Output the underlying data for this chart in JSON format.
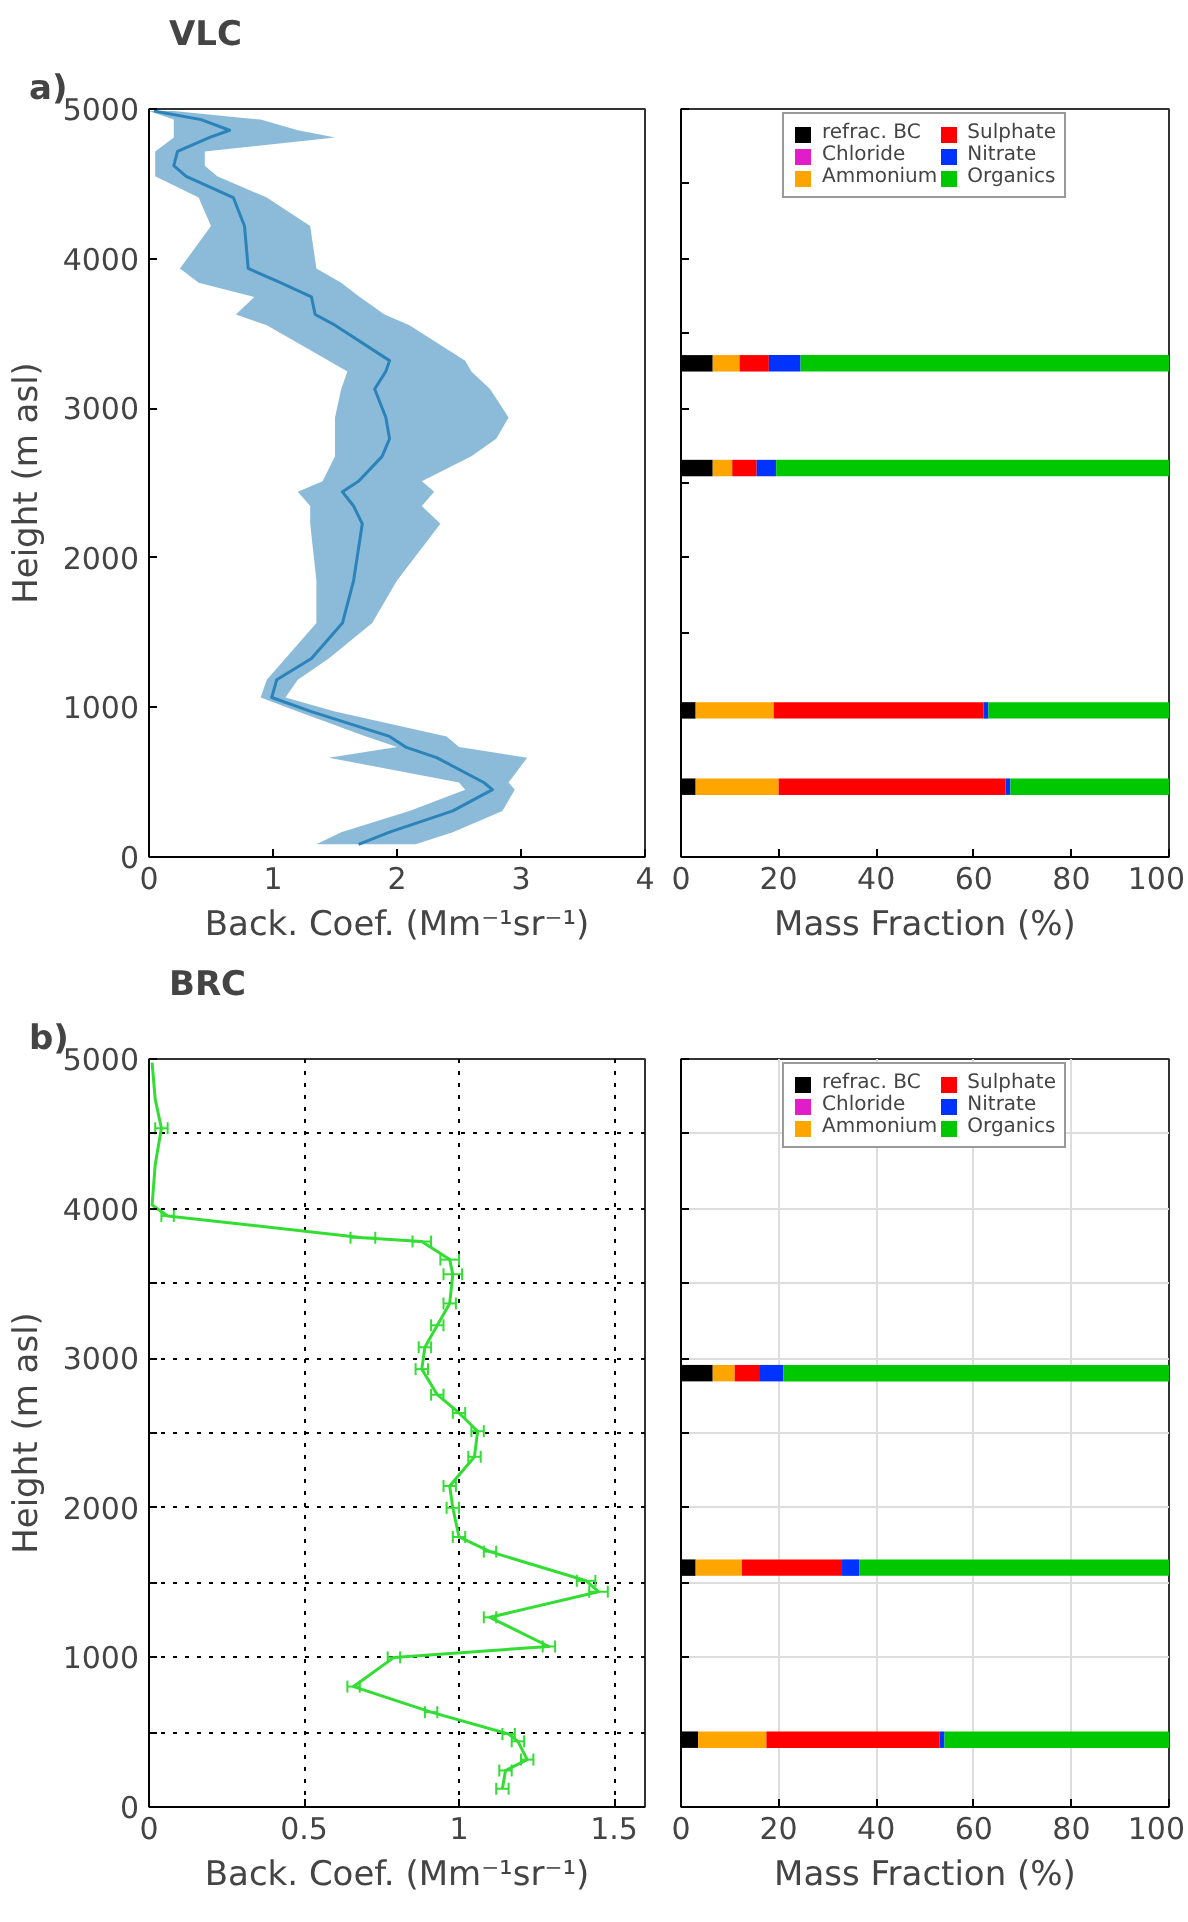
{
  "chart_data": [
    {
      "type": "line",
      "orientation": "horizontal",
      "title": "VLC",
      "annotations": [
        "a)"
      ],
      "xlabel": "Back. Coef. (Mm⁻¹sr⁻¹)",
      "ylabel": "Height (m asl)",
      "xlim": [
        0,
        4
      ],
      "xticks": [
        0,
        1,
        2,
        3,
        4
      ],
      "ylim": [
        0,
        5000
      ],
      "yticks": [
        0,
        1000,
        2000,
        3000,
        4000,
        5000
      ],
      "x": [
        85,
        166,
        308,
        450,
        498,
        664,
        735,
        806,
        972,
        1066,
        1185,
        1327,
        1564,
        1848,
        2227,
        2346,
        2441,
        2512,
        2678,
        2796,
        2938,
        3128,
        3246,
        3318,
        3555,
        3626,
        3744,
        3839,
        3934,
        4218,
        4408,
        4550,
        4621,
        4716,
        4810,
        4858,
        4929,
        4986
      ],
      "series": [
        {
          "color": "#2b83ba",
          "values": [
            1.69,
            1.94,
            2.45,
            2.77,
            2.7,
            2.32,
            2.07,
            1.94,
            1.31,
            0.99,
            1.03,
            1.31,
            1.56,
            1.65,
            1.72,
            1.65,
            1.56,
            1.69,
            1.88,
            1.94,
            1.91,
            1.82,
            1.91,
            1.94,
            1.5,
            1.34,
            1.31,
            1.06,
            0.8,
            0.77,
            0.68,
            0.3,
            0.2,
            0.23,
            0.49,
            0.65,
            0.42,
            0.04
          ],
          "lower": [
            1.35,
            1.55,
            2.1,
            2.55,
            2.5,
            1.45,
            2.0,
            1.75,
            1.2,
            0.9,
            0.95,
            1.1,
            1.35,
            1.35,
            1.3,
            1.3,
            1.2,
            1.4,
            1.5,
            1.5,
            1.5,
            1.55,
            1.6,
            1.45,
            0.95,
            0.7,
            0.85,
            0.4,
            0.25,
            0.5,
            0.4,
            0.05,
            0.05,
            0.05,
            0.2,
            0.2,
            0.2,
            0.0
          ],
          "upper": [
            2.15,
            2.45,
            2.85,
            2.95,
            2.9,
            3.05,
            2.5,
            2.4,
            1.5,
            1.1,
            1.2,
            1.45,
            1.8,
            2.0,
            2.35,
            2.2,
            2.3,
            2.2,
            2.6,
            2.8,
            2.9,
            2.75,
            2.6,
            2.55,
            2.1,
            1.9,
            1.7,
            1.55,
            1.35,
            1.3,
            0.95,
            0.55,
            0.45,
            0.45,
            1.5,
            1.2,
            0.9,
            0.2
          ]
        }
      ]
    },
    {
      "type": "bar",
      "orientation": "horizontal",
      "stacked": true,
      "xlabel": "Mass Fraction (%)",
      "xlim": [
        0,
        100
      ],
      "xticks": [
        0,
        20,
        40,
        60,
        80,
        100
      ],
      "ylim": [
        0,
        5000
      ],
      "yticks": [
        0,
        500,
        1000,
        1500,
        2000,
        2500,
        3000,
        3500,
        4000,
        4500,
        5000
      ],
      "tick_labels": "x",
      "legend": "top",
      "x": [
        3300,
        2600,
        980,
        470
      ],
      "series": [
        {
          "name": "refrac. BC",
          "color": "#000000",
          "values": [
            6.5,
            6.5,
            3,
            3
          ]
        },
        {
          "name": "Chloride",
          "color": "#e21cc8",
          "values": [
            0,
            0,
            0,
            0
          ]
        },
        {
          "name": "Ammonium",
          "color": "#ffa500",
          "values": [
            5.5,
            4,
            16,
            17
          ]
        },
        {
          "name": "Sulphate",
          "color": "#ff0000",
          "values": [
            6,
            5,
            43,
            46.5
          ]
        },
        {
          "name": "Nitrate",
          "color": "#0033ff",
          "values": [
            6.5,
            4,
            1,
            1
          ]
        },
        {
          "name": "Organics",
          "color": "#00c800",
          "values": [
            75.5,
            80.5,
            37,
            32.5
          ]
        }
      ]
    },
    {
      "type": "line",
      "orientation": "horizontal",
      "title": "BRC",
      "annotations": [
        "b)"
      ],
      "xlabel": "Back. Coef. (Mm⁻¹sr⁻¹)",
      "ylabel": "Height (m asl)",
      "xlim": [
        0,
        1.6
      ],
      "xticks": [
        0,
        0.5,
        1,
        1.5
      ],
      "ylim": [
        0,
        5000
      ],
      "grid": true,
      "yticks": [
        0,
        {
          "value": 500,
          "label": null
        },
        1000,
        {
          "value": 1500,
          "label": null
        },
        2000,
        {
          "value": 2500,
          "label": null
        },
        3000,
        {
          "value": 3500,
          "label": null
        },
        4000,
        {
          "value": 4500,
          "label": null
        },
        5000
      ],
      "x": [
        122,
        244,
        317,
        439,
        488,
        634,
        805,
        1000,
        1073,
        1268,
        1439,
        1512,
        1707,
        1805,
        2000,
        2146,
        2341,
        2512,
        2634,
        2756,
        2927,
        3073,
        3220,
        3366,
        3561,
        3659,
        3780,
        3805,
        3951,
        4024,
        4293,
        4537,
        4732,
        4976
      ],
      "series": [
        {
          "color": "#33dd33",
          "values": [
            1.14,
            1.15,
            1.22,
            1.19,
            1.16,
            0.91,
            0.66,
            0.79,
            1.29,
            1.1,
            1.45,
            1.41,
            1.1,
            1.0,
            0.98,
            0.97,
            1.05,
            1.06,
            1.0,
            0.93,
            0.88,
            0.89,
            0.93,
            0.97,
            0.98,
            0.97,
            0.88,
            0.69,
            0.06,
            0.01,
            0.02,
            0.04,
            0.02,
            0.01
          ],
          "errors": [
            0.02,
            0.02,
            0.02,
            0.02,
            0.02,
            0.02,
            0.02,
            0.02,
            0.02,
            0.02,
            0.03,
            0.03,
            0.02,
            0.02,
            0.02,
            0.02,
            0.02,
            0.02,
            0.02,
            0.02,
            0.02,
            0.02,
            0.02,
            0.02,
            0.03,
            0.03,
            0.03,
            0.04,
            0.02,
            null,
            null,
            0.02,
            null,
            null
          ]
        }
      ]
    },
    {
      "type": "bar",
      "orientation": "horizontal",
      "stacked": true,
      "xlabel": "Mass Fraction (%)",
      "xlim": [
        0,
        100
      ],
      "xticks": [
        0,
        20,
        40,
        60,
        80,
        100
      ],
      "ylim": [
        0,
        5000
      ],
      "yticks": [
        0,
        500,
        1000,
        1500,
        2000,
        2500,
        3000,
        3500,
        4000,
        4500,
        5000
      ],
      "tick_labels": "x",
      "legend": "top",
      "grid": true,
      "x": [
        2900,
        1600,
        450
      ],
      "series": [
        {
          "name": "refrac. BC",
          "color": "#000000",
          "values": [
            6.5,
            3,
            3.5
          ]
        },
        {
          "name": "Chloride",
          "color": "#e21cc8",
          "values": [
            0,
            0,
            0
          ]
        },
        {
          "name": "Ammonium",
          "color": "#ffa500",
          "values": [
            4.5,
            9.5,
            14
          ]
        },
        {
          "name": "Sulphate",
          "color": "#ff0000",
          "values": [
            5,
            20.5,
            35.5
          ]
        },
        {
          "name": "Nitrate",
          "color": "#0033ff",
          "values": [
            5,
            3.5,
            1
          ]
        },
        {
          "name": "Organics",
          "color": "#00c800",
          "values": [
            79,
            63.5,
            46
          ]
        }
      ]
    }
  ]
}
